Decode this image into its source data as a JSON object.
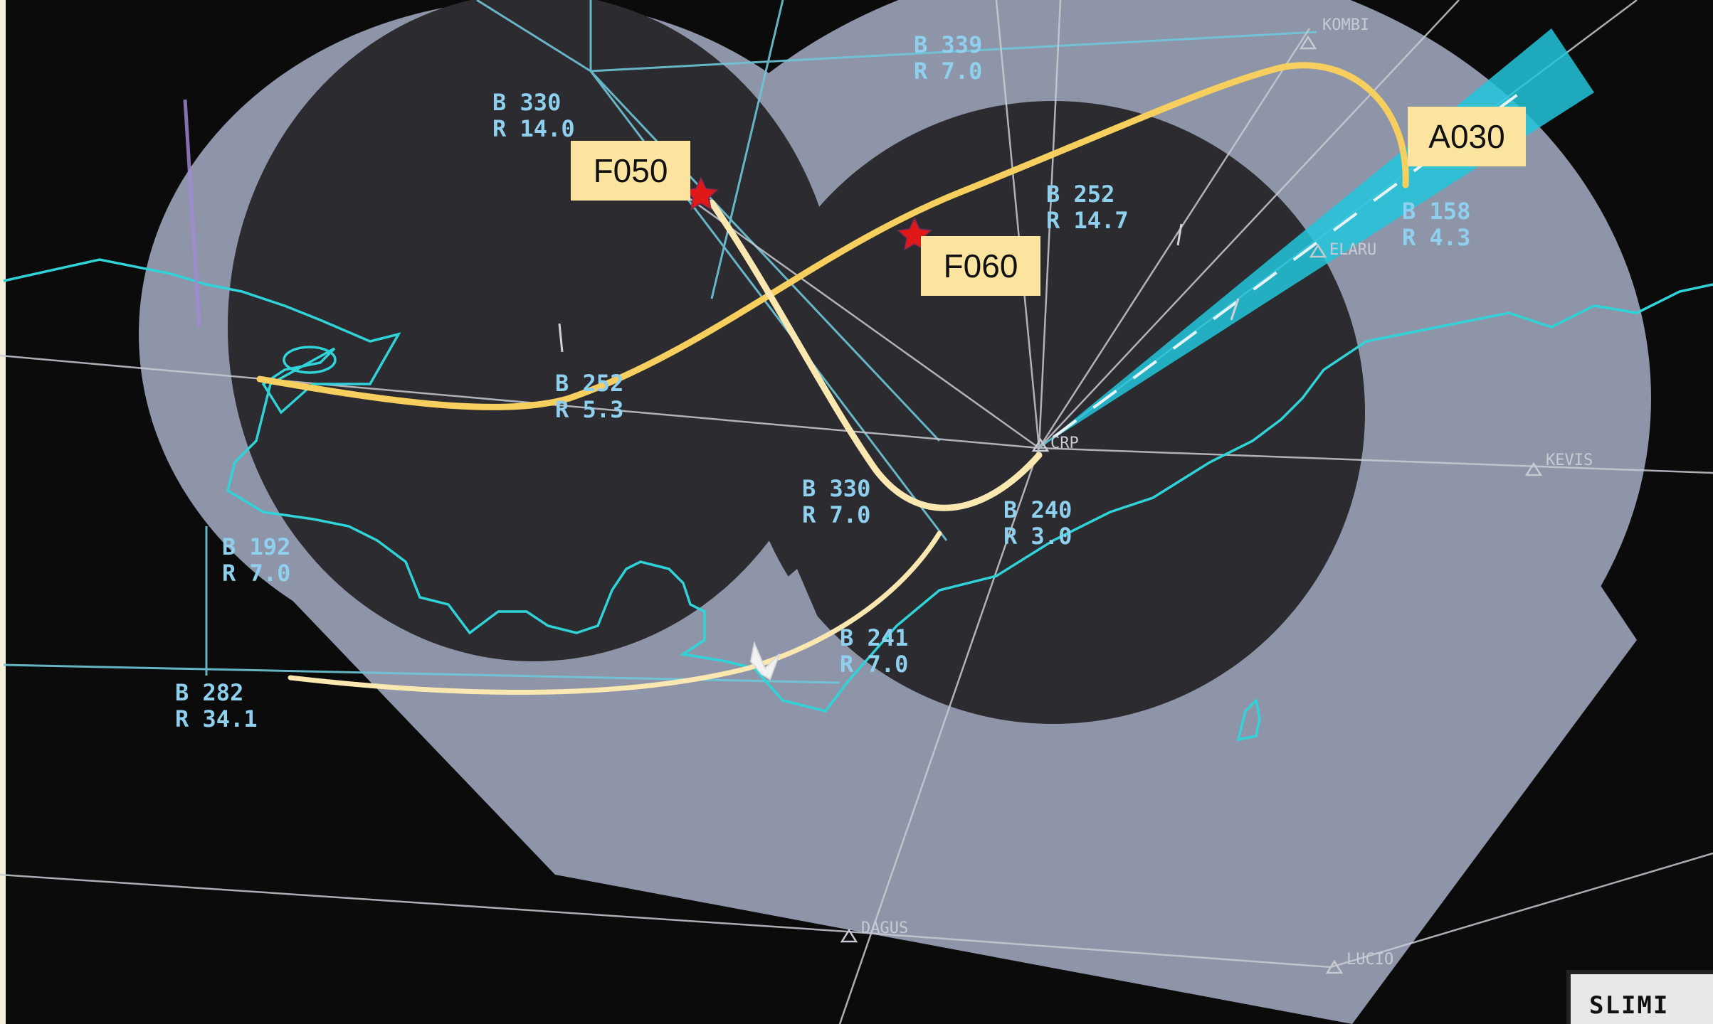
{
  "radar": {
    "colors": {
      "background": "#0b0b0b",
      "outer_area": "#8f95a8",
      "inner_area": "#2b2b30",
      "coastline": "#2fd3d8",
      "route_lines": "#c9cbd3",
      "airway_lines": "#6ec6d8",
      "beam": "#22c6dc",
      "trajectory_main": "#f7cf5e",
      "trajectory_light": "#fbe7b0",
      "star_marker": "#e01818"
    },
    "range_bearing_labels": [
      {
        "id": "b330-r14",
        "bearing": "B 330",
        "range": "R 14.0"
      },
      {
        "id": "b339-r7",
        "bearing": "B 339",
        "range": "R 7.0"
      },
      {
        "id": "b252-r14",
        "bearing": "B 252",
        "range": "R 14.7"
      },
      {
        "id": "b158-r4",
        "bearing": "B 158",
        "range": "R 4.3"
      },
      {
        "id": "b252-r5",
        "bearing": "B 252",
        "range": "R 5.3"
      },
      {
        "id": "b330-r7",
        "bearing": "B 330",
        "range": "R 7.0"
      },
      {
        "id": "b240-r3",
        "bearing": "B 240",
        "range": "R 3.0"
      },
      {
        "id": "b192-r7",
        "bearing": "B 192",
        "range": "R 7.0"
      },
      {
        "id": "b241-r7",
        "bearing": "B 241",
        "range": "R 7.0"
      },
      {
        "id": "b282-r34",
        "bearing": "B 282",
        "range": "R 34.1"
      }
    ],
    "fixes": [
      {
        "id": "kombi",
        "name": "KOMBI"
      },
      {
        "id": "elaru",
        "name": "ELARU"
      },
      {
        "id": "kevis",
        "name": "KEVIS"
      },
      {
        "id": "dagus",
        "name": "DAGUS"
      },
      {
        "id": "lucio",
        "name": "LUCIO"
      },
      {
        "id": "crp",
        "name": "CRP"
      }
    ],
    "altitude_callouts": [
      {
        "id": "f050",
        "text": "F050"
      },
      {
        "id": "f060",
        "text": "F060"
      },
      {
        "id": "a030",
        "text": "A030"
      }
    ],
    "corner_label": "SLIMI"
  }
}
